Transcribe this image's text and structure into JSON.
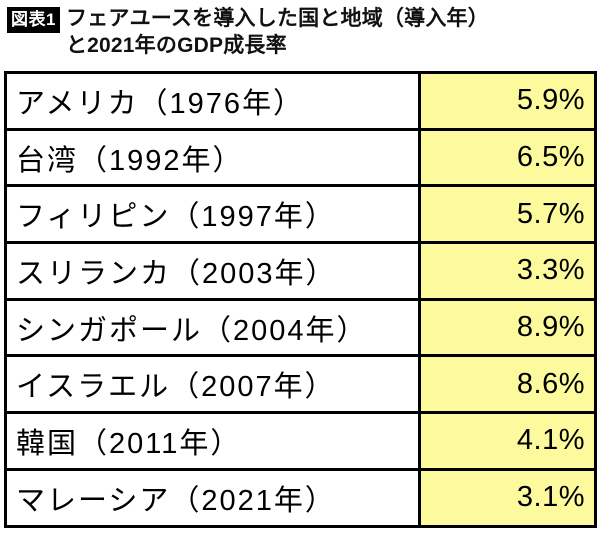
{
  "header": {
    "badge": "図表1",
    "title_line1": "フェアユースを導入した国と地域（導入年）",
    "title_line2": "と2021年のGDP成長率"
  },
  "table": {
    "rows": [
      {
        "label": "アメリカ（1976年）",
        "value": "5.9%"
      },
      {
        "label": "台湾（1992年）",
        "value": "6.5%"
      },
      {
        "label": "フィリピン（1997年）",
        "value": "5.7%"
      },
      {
        "label": "スリランカ（2003年）",
        "value": "3.3%"
      },
      {
        "label": "シンガポール（2004年）",
        "value": "8.9%"
      },
      {
        "label": "イスラエル（2007年）",
        "value": "8.6%"
      },
      {
        "label": "韓国（2011年）",
        "value": "4.1%"
      },
      {
        "label": "マレーシア（2021年）",
        "value": "3.1%"
      }
    ]
  },
  "colors": {
    "rate_cell_background": "#FCFA9D",
    "border": "#000000",
    "badge_background": "#000000",
    "badge_text": "#FFFFFF"
  },
  "chart_data": {
    "type": "table",
    "title": "フェアユースを導入した国と地域（導入年）と2021年のGDP成長率",
    "rows": [
      {
        "country": "アメリカ",
        "adoption_year": 1976,
        "gdp_growth_2021_pct": 5.9
      },
      {
        "country": "台湾",
        "adoption_year": 1992,
        "gdp_growth_2021_pct": 6.5
      },
      {
        "country": "フィリピン",
        "adoption_year": 1997,
        "gdp_growth_2021_pct": 5.7
      },
      {
        "country": "スリランカ",
        "adoption_year": 2003,
        "gdp_growth_2021_pct": 3.3
      },
      {
        "country": "シンガポール",
        "adoption_year": 2004,
        "gdp_growth_2021_pct": 8.9
      },
      {
        "country": "イスラエル",
        "adoption_year": 2007,
        "gdp_growth_2021_pct": 8.6
      },
      {
        "country": "韓国",
        "adoption_year": 2011,
        "gdp_growth_2021_pct": 4.1
      },
      {
        "country": "マレーシア",
        "adoption_year": 2021,
        "gdp_growth_2021_pct": 3.1
      }
    ],
    "layout": {
      "highlight_column": "gdp_growth_2021_pct",
      "grid": true,
      "legend": "none"
    }
  }
}
